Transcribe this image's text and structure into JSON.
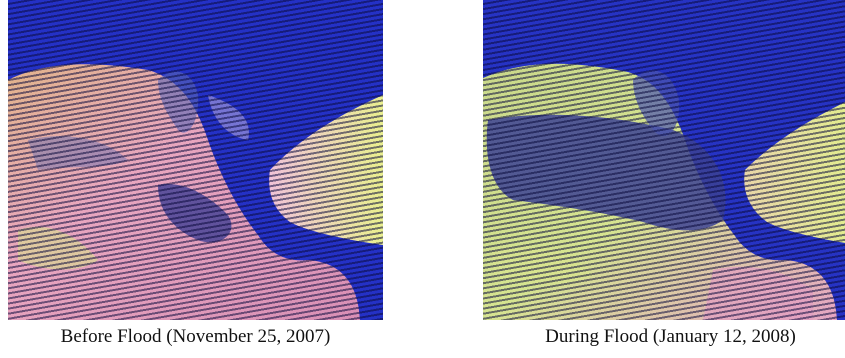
{
  "panels": [
    {
      "caption": "Before Flood (November 25, 2007)"
    },
    {
      "caption": "During Flood (January 12, 2008)"
    }
  ],
  "colors": {
    "water": "#2430c8",
    "land_pink": "#e8a0b8",
    "land_yellow": "#e8e88a",
    "flood_dark": "#3a3e8a"
  }
}
